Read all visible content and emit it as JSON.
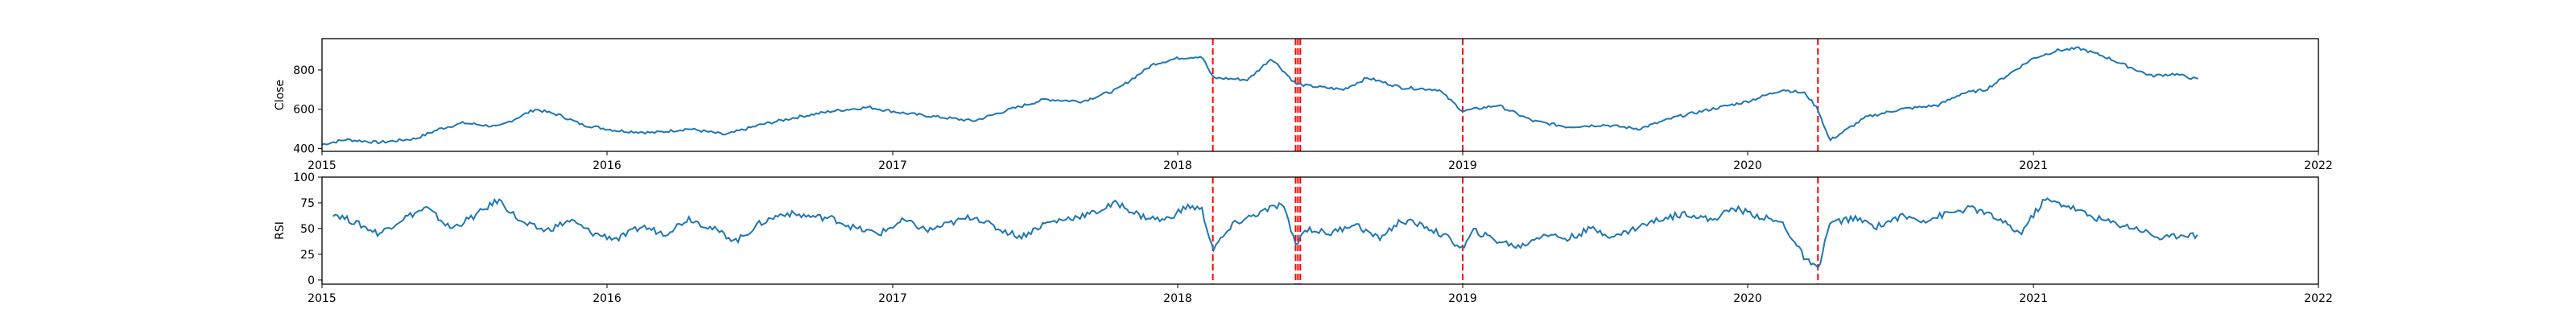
{
  "chart_data": [
    {
      "type": "line",
      "title": "",
      "xlabel": "",
      "ylabel": "Close",
      "xlim": [
        "2015-01-01",
        "2022-01-01"
      ],
      "ylim": [
        385,
        960
      ],
      "x_ticks": [
        "2015",
        "2016",
        "2017",
        "2018",
        "2019",
        "2020",
        "2021",
        "2022"
      ],
      "y_ticks": [
        400,
        600,
        800
      ],
      "grid": false,
      "legend": "none",
      "line_color": "#1f77b4",
      "vline_color": "#ff0000",
      "vlines": [
        "2018-02-15",
        "2018-06-01",
        "2018-06-04",
        "2018-06-07",
        "2019-01-01",
        "2020-03-31"
      ],
      "series": [
        {
          "x": [
            "2015-01-01",
            "2015-02-01",
            "2015-03-15",
            "2015-05-01",
            "2015-06-01",
            "2015-07-01",
            "2015-08-15",
            "2015-10-01",
            "2015-11-01",
            "2015-12-01",
            "2016-01-15",
            "2016-03-01",
            "2016-04-15",
            "2016-06-01",
            "2016-07-15",
            "2016-09-01",
            "2016-10-15",
            "2016-12-01",
            "2017-01-15",
            "2017-03-01",
            "2017-04-15",
            "2017-06-01",
            "2017-07-15",
            "2017-09-01",
            "2017-10-15",
            "2017-12-01",
            "2018-01-01",
            "2018-02-01",
            "2018-02-15",
            "2018-04-01",
            "2018-05-01",
            "2018-06-01",
            "2018-06-15",
            "2018-08-01",
            "2018-09-01",
            "2018-10-15",
            "2018-12-01",
            "2019-01-01",
            "2019-02-15",
            "2019-04-01",
            "2019-05-15",
            "2019-07-01",
            "2019-08-15",
            "2019-10-01",
            "2019-11-15",
            "2020-01-01",
            "2020-02-15",
            "2020-03-15",
            "2020-03-31",
            "2020-04-15",
            "2020-06-01",
            "2020-07-15",
            "2020-09-01",
            "2020-10-01",
            "2020-11-01",
            "2020-12-01",
            "2021-01-01",
            "2021-02-01",
            "2021-03-01",
            "2021-04-01",
            "2021-05-01",
            "2021-06-01",
            "2021-07-01",
            "2021-08-01"
          ],
          "values": [
            420,
            445,
            430,
            450,
            500,
            530,
            510,
            600,
            570,
            520,
            490,
            480,
            500,
            470,
            520,
            560,
            590,
            610,
            580,
            560,
            540,
            600,
            650,
            640,
            700,
            830,
            860,
            870,
            760,
            750,
            860,
            730,
            720,
            700,
            760,
            710,
            700,
            590,
            620,
            540,
            510,
            520,
            500,
            560,
            600,
            640,
            700,
            680,
            600,
            440,
            560,
            600,
            620,
            680,
            700,
            780,
            860,
            900,
            910,
            870,
            820,
            770,
            780,
            750
          ]
        }
      ]
    },
    {
      "type": "line",
      "title": "",
      "xlabel": "",
      "ylabel": "RSI",
      "xlim": [
        "2015-01-01",
        "2022-01-01"
      ],
      "ylim": [
        -4,
        100
      ],
      "x_ticks": [
        "2015",
        "2016",
        "2017",
        "2018",
        "2019",
        "2020",
        "2021",
        "2022"
      ],
      "y_ticks": [
        0,
        25,
        50,
        75,
        100
      ],
      "grid": false,
      "legend": "none",
      "line_color": "#1f77b4",
      "vline_color": "#ff0000",
      "vlines": [
        "2018-02-15",
        "2018-06-01",
        "2018-06-04",
        "2018-06-07",
        "2019-01-01",
        "2020-03-31"
      ],
      "series": [
        {
          "x": [
            "2015-01-15",
            "2015-02-15",
            "2015-03-15",
            "2015-04-15",
            "2015-05-15",
            "2015-06-15",
            "2015-07-15",
            "2015-08-15",
            "2015-09-15",
            "2015-10-15",
            "2015-11-15",
            "2015-12-15",
            "2016-01-15",
            "2016-02-15",
            "2016-03-15",
            "2016-04-15",
            "2016-05-15",
            "2016-06-15",
            "2016-07-15",
            "2016-08-15",
            "2016-09-15",
            "2016-10-15",
            "2016-11-15",
            "2016-12-15",
            "2017-01-15",
            "2017-02-15",
            "2017-03-15",
            "2017-04-15",
            "2017-05-15",
            "2017-06-15",
            "2017-07-15",
            "2017-08-15",
            "2017-09-15",
            "2017-10-15",
            "2017-11-15",
            "2017-12-15",
            "2018-01-15",
            "2018-02-01",
            "2018-02-15",
            "2018-03-15",
            "2018-04-15",
            "2018-05-15",
            "2018-06-01",
            "2018-06-15",
            "2018-07-15",
            "2018-08-15",
            "2018-09-15",
            "2018-10-15",
            "2018-11-15",
            "2018-12-15",
            "2019-01-01",
            "2019-01-15",
            "2019-02-15",
            "2019-03-15",
            "2019-04-15",
            "2019-05-15",
            "2019-06-15",
            "2019-07-15",
            "2019-08-15",
            "2019-09-15",
            "2019-10-15",
            "2019-11-15",
            "2019-12-15",
            "2020-01-15",
            "2020-02-15",
            "2020-03-15",
            "2020-03-31",
            "2020-04-15",
            "2020-05-15",
            "2020-06-15",
            "2020-07-15",
            "2020-08-15",
            "2020-09-15",
            "2020-10-15",
            "2020-11-15",
            "2020-12-15",
            "2021-01-15",
            "2021-02-15",
            "2021-03-15",
            "2021-04-15",
            "2021-05-15",
            "2021-06-15",
            "2021-07-15",
            "2021-08-01"
          ],
          "values": [
            65,
            55,
            45,
            60,
            70,
            50,
            62,
            78,
            55,
            48,
            58,
            45,
            40,
            52,
            45,
            60,
            50,
            38,
            55,
            65,
            62,
            60,
            50,
            45,
            58,
            48,
            55,
            62,
            50,
            42,
            55,
            60,
            65,
            75,
            62,
            58,
            72,
            68,
            30,
            55,
            65,
            74,
            35,
            50,
            45,
            55,
            40,
            58,
            52,
            40,
            30,
            48,
            38,
            32,
            45,
            40,
            50,
            42,
            52,
            60,
            65,
            58,
            70,
            62,
            55,
            20,
            10,
            55,
            60,
            52,
            62,
            58,
            65,
            70,
            60,
            45,
            78,
            72,
            62,
            55,
            50,
            40,
            45,
            42
          ]
        }
      ]
    }
  ]
}
